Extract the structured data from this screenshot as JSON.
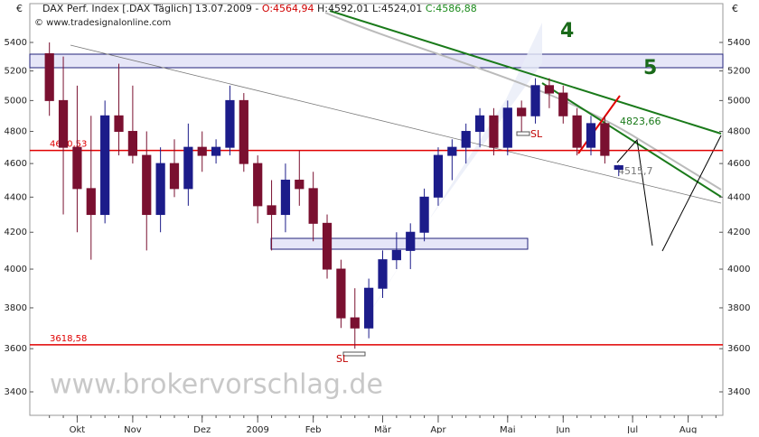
{
  "chart_data": {
    "type": "candlestick",
    "header": [
      "DAX Perf. Index [.DAX Täglich] 13.07.2009 -",
      "O:4564,94",
      "H:4592,01",
      "L:4524,01",
      "C:4586,88"
    ],
    "copyright": "© www.tradesignalonline.com",
    "currency": "€",
    "watermark": "www.brokervorschlag.de",
    "annotations": [
      "4",
      "5",
      "4823,66",
      "4515,7",
      "SL",
      "SL"
    ],
    "categories": [
      null,
      null,
      "Okt",
      null,
      null,
      null,
      "Nov",
      null,
      null,
      null,
      null,
      "Dez",
      null,
      null,
      null,
      "2009",
      null,
      null,
      null,
      "Feb",
      null,
      null,
      null,
      null,
      "Mär",
      null,
      null,
      null,
      "Apr",
      null,
      null,
      null,
      null,
      "Mai",
      null,
      null,
      null,
      "Jun",
      null,
      null,
      null,
      null,
      "Jul",
      null,
      null,
      null,
      "Aug",
      null,
      null
    ],
    "open": [
      5320,
      5000,
      4700,
      4450,
      4300,
      4900,
      4800,
      4650,
      4300,
      4600,
      4450,
      4700,
      4650,
      4700,
      5000,
      4600,
      4350,
      4300,
      4500,
      4450,
      4250,
      4000,
      3750,
      3700,
      3900,
      4050,
      4100,
      4200,
      4400,
      4650,
      4700,
      4800,
      4900,
      4700,
      4950,
      4900,
      5100,
      5050,
      4900,
      4700,
      4850,
      4564.94,
      null,
      null,
      null,
      null,
      null,
      null,
      null
    ],
    "high": [
      5400,
      5300,
      5100,
      4900,
      5000,
      5250,
      5100,
      4800,
      4700,
      4750,
      4850,
      4800,
      4750,
      5100,
      5050,
      4650,
      4500,
      4600,
      4680,
      4550,
      4300,
      4050,
      3900,
      3950,
      4100,
      4200,
      4250,
      4450,
      4700,
      4750,
      4850,
      4950,
      4950,
      5000,
      5000,
      5150,
      5150,
      5100,
      4950,
      4900,
      4900,
      4592.01,
      null,
      null,
      null,
      null,
      null,
      null,
      null
    ],
    "low": [
      4900,
      4300,
      4200,
      4050,
      4250,
      4650,
      4600,
      4100,
      4200,
      4400,
      4350,
      4550,
      4600,
      4650,
      4550,
      4250,
      4100,
      4200,
      4350,
      4150,
      3950,
      3700,
      3600,
      3650,
      3850,
      4000,
      4000,
      4150,
      4350,
      4500,
      4600,
      4700,
      4650,
      4650,
      4800,
      4850,
      4950,
      4850,
      4650,
      4650,
      4600,
      4524.01,
      null,
      null,
      null,
      null,
      null,
      null,
      null
    ],
    "close": [
      5000,
      4700,
      4450,
      4300,
      4900,
      4800,
      4650,
      4300,
      4600,
      4450,
      4700,
      4650,
      4700,
      5000,
      4600,
      4350,
      4300,
      4500,
      4450,
      4250,
      4000,
      3750,
      3700,
      3900,
      4050,
      4100,
      4200,
      4400,
      4650,
      4700,
      4800,
      4900,
      4700,
      4950,
      4900,
      5100,
      5050,
      4900,
      4700,
      4850,
      4650,
      4586.88,
      null,
      null,
      null,
      null,
      null,
      null,
      null
    ],
    "up_color": "#1c1c8a",
    "down_color": "#7a1030",
    "hlines": [
      {
        "value": 4680.53,
        "label": "4680,53"
      },
      {
        "value": 3618.58,
        "label": "3618,58"
      }
    ],
    "hline_color": "#e00000",
    "log_scale": true,
    "ylim": [
      3400,
      5400
    ],
    "yticks": [
      3400,
      3600,
      3800,
      4000,
      4200,
      4400,
      4600,
      4800,
      5000,
      5200,
      5400
    ]
  }
}
